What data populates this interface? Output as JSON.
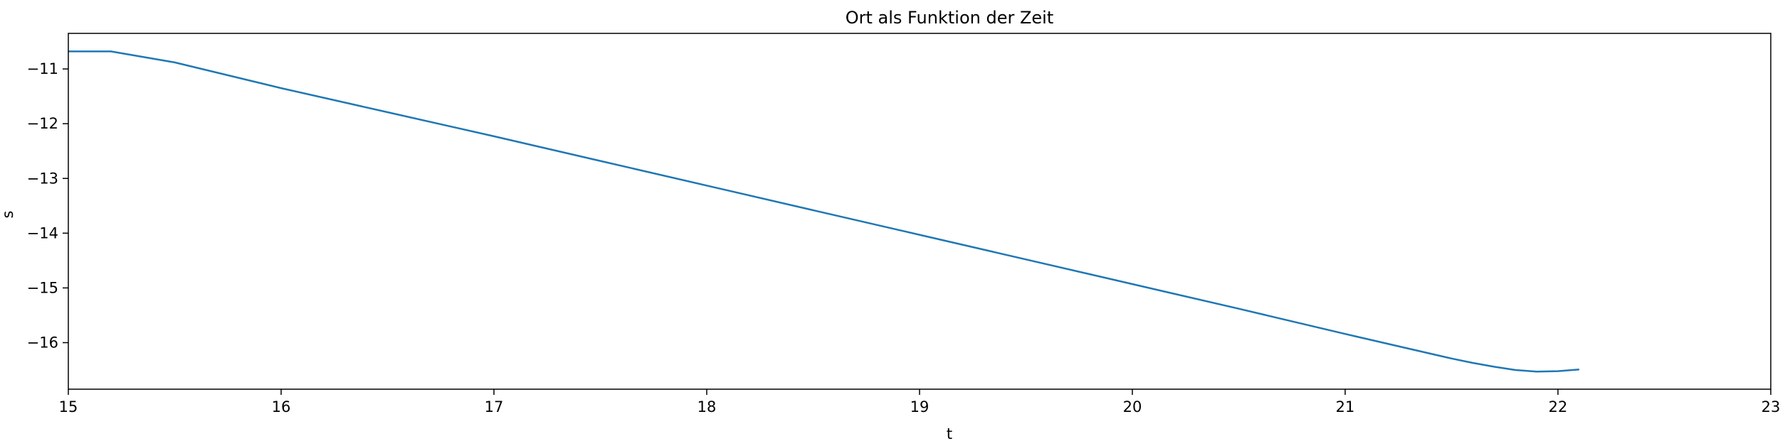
{
  "chart_data": {
    "type": "line",
    "title": "Ort als Funktion der Zeit",
    "xlabel": "t",
    "ylabel": "s",
    "xlim": [
      15,
      23
    ],
    "ylim": [
      -16.85,
      -10.35
    ],
    "xticks": [
      15,
      16,
      17,
      18,
      19,
      20,
      21,
      22,
      23
    ],
    "yticks": [
      -16,
      -15,
      -14,
      -13,
      -12,
      -11
    ],
    "grid": false,
    "legend": "none",
    "series": [
      {
        "color": "#1f77b4",
        "x": [
          15.0,
          15.2,
          15.5,
          16.0,
          16.5,
          17.0,
          17.5,
          18.0,
          18.5,
          19.0,
          19.5,
          20.0,
          20.5,
          21.0,
          21.3,
          21.5,
          21.6,
          21.7,
          21.8,
          21.9,
          22.0,
          22.1
        ],
        "y": [
          -10.68,
          -10.68,
          -10.88,
          -11.35,
          -11.79,
          -12.23,
          -12.68,
          -13.13,
          -13.58,
          -14.03,
          -14.48,
          -14.93,
          -15.38,
          -15.84,
          -16.11,
          -16.29,
          -16.37,
          -16.44,
          -16.5,
          -16.53,
          -16.52,
          -16.49
        ]
      }
    ]
  }
}
